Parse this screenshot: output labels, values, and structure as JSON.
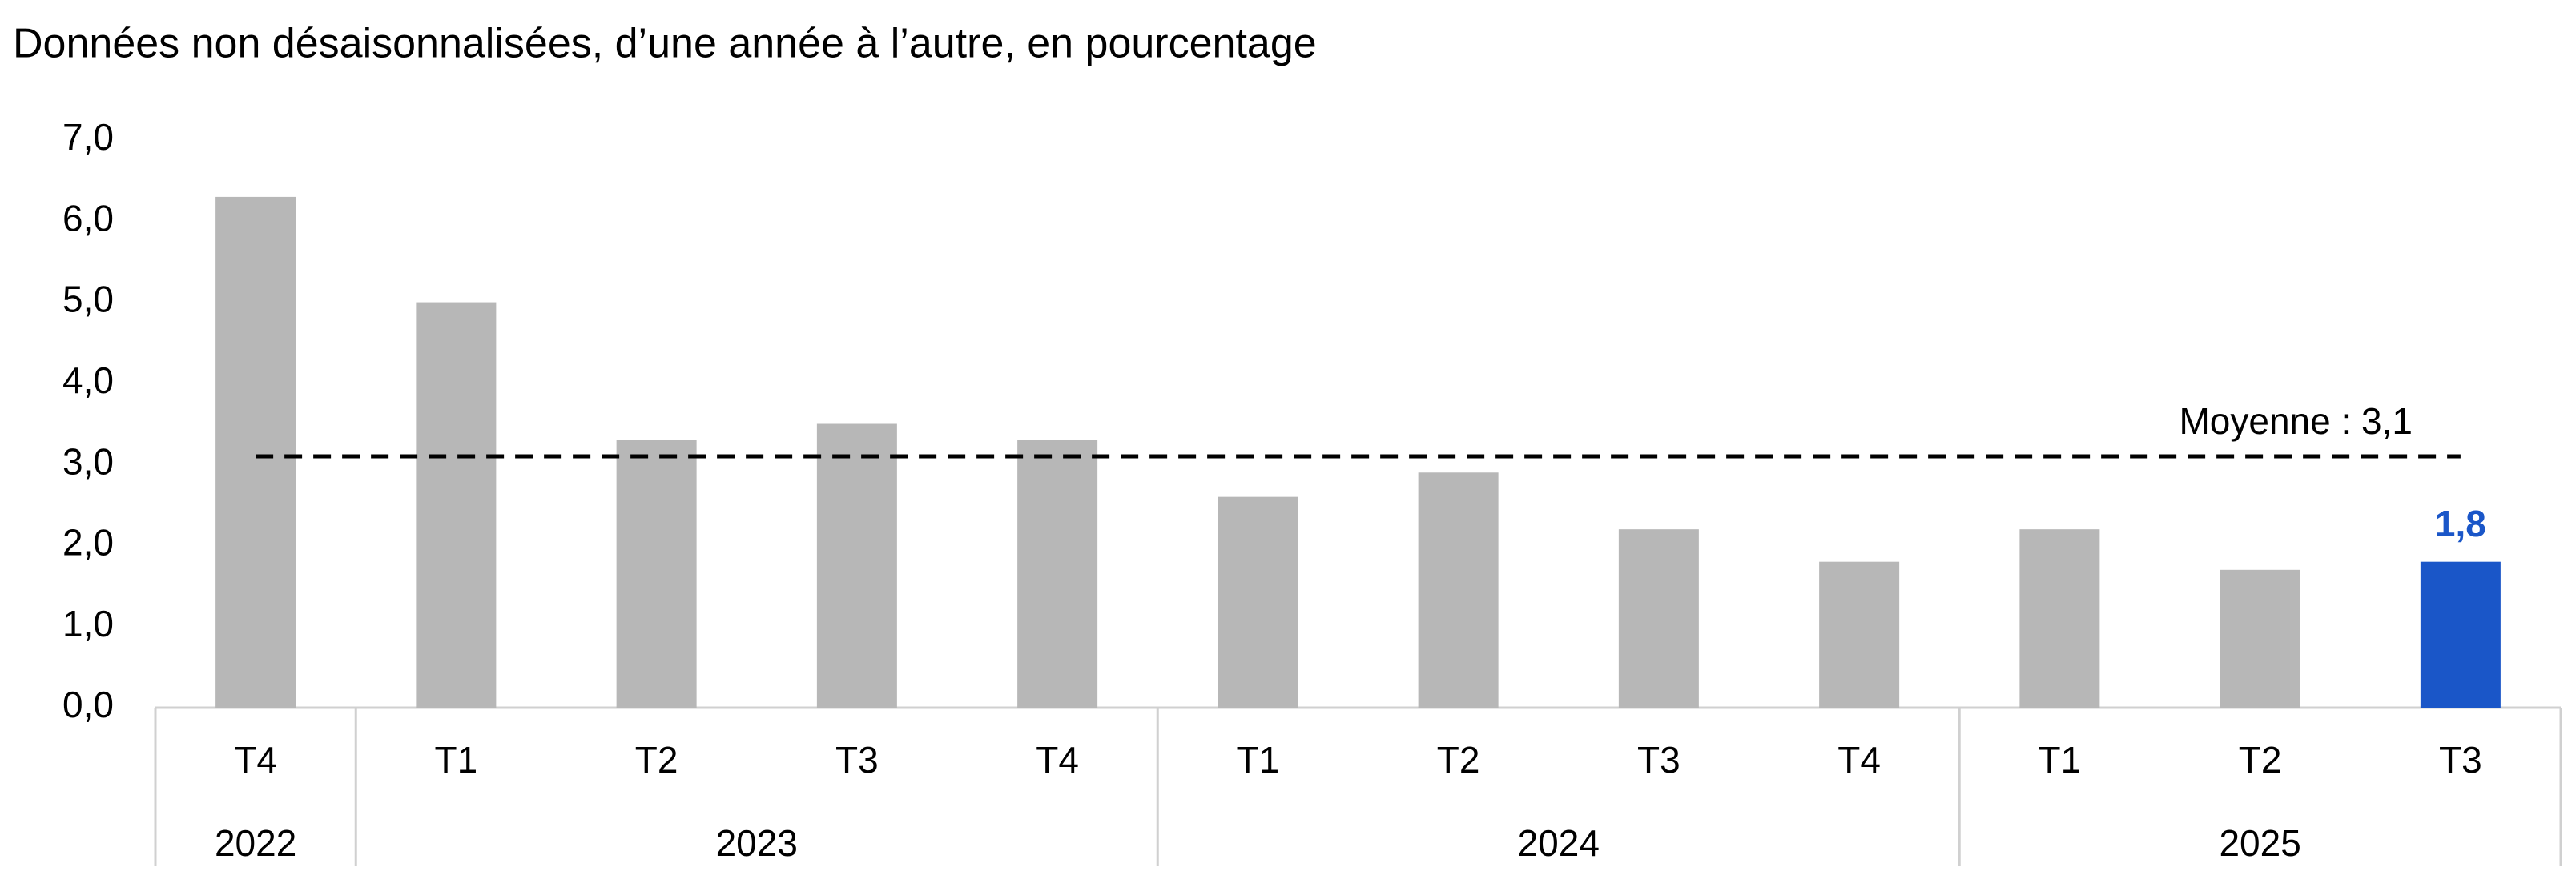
{
  "chart_data": {
    "type": "bar",
    "title": "Données non désaisonnalisées, d’une année à l’autre, en pourcentage",
    "categories": [
      "T4",
      "T1",
      "T2",
      "T3",
      "T4",
      "T1",
      "T2",
      "T3",
      "T4",
      "T1",
      "T2",
      "T3"
    ],
    "groups": [
      {
        "label": "2022",
        "span": 1
      },
      {
        "label": "2023",
        "span": 4
      },
      {
        "label": "2024",
        "span": 4
      },
      {
        "label": "2025",
        "span": 3
      }
    ],
    "values": [
      6.3,
      5.0,
      3.3,
      3.5,
      3.3,
      2.6,
      2.9,
      2.2,
      1.8,
      2.2,
      1.7,
      1.8
    ],
    "value_labels": [
      null,
      null,
      null,
      null,
      null,
      null,
      null,
      null,
      null,
      null,
      null,
      "1,8"
    ],
    "colors": [
      "#b7b7b7",
      "#b7b7b7",
      "#b7b7b7",
      "#b7b7b7",
      "#b7b7b7",
      "#b7b7b7",
      "#b7b7b7",
      "#b7b7b7",
      "#b7b7b7",
      "#b7b7b7",
      "#b7b7b7",
      "#1a56c8"
    ],
    "reference_line": {
      "value": 3.1,
      "label": "Moyenne : 3,1"
    },
    "ylim": [
      0,
      7
    ],
    "yticks": [
      {
        "value": 0,
        "label": "0,0"
      },
      {
        "value": 1,
        "label": "1,0"
      },
      {
        "value": 2,
        "label": "2,0"
      },
      {
        "value": 3,
        "label": "3,0"
      },
      {
        "value": 4,
        "label": "4,0"
      },
      {
        "value": 5,
        "label": "5,0"
      },
      {
        "value": 6,
        "label": "6,0"
      },
      {
        "value": 7,
        "label": "7,0"
      }
    ],
    "grid": false
  }
}
